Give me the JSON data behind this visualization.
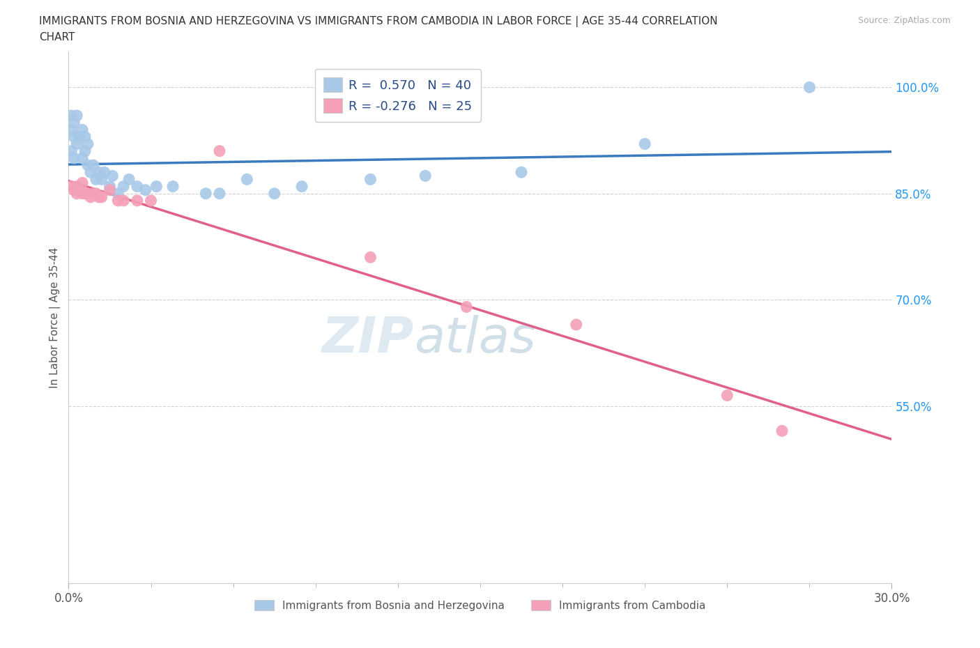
{
  "title_line1": "IMMIGRANTS FROM BOSNIA AND HERZEGOVINA VS IMMIGRANTS FROM CAMBODIA IN LABOR FORCE | AGE 35-44 CORRELATION",
  "title_line2": "CHART",
  "source": "Source: ZipAtlas.com",
  "ylabel": "In Labor Force | Age 35-44",
  "xlim": [
    0.0,
    0.3
  ],
  "ylim": [
    0.3,
    1.05
  ],
  "yticks": [
    0.55,
    0.7,
    0.85,
    1.0
  ],
  "ytick_labels": [
    "55.0%",
    "70.0%",
    "85.0%",
    "100.0%"
  ],
  "xticks": [
    0.0,
    0.3
  ],
  "xtick_labels": [
    "0.0%",
    "30.0%"
  ],
  "blue_R": 0.57,
  "blue_N": 40,
  "pink_R": -0.276,
  "pink_N": 25,
  "blue_color": "#a8c8e8",
  "blue_line_color": "#3a7abf",
  "pink_color": "#f4a0b8",
  "pink_line_color": "#e0608a",
  "legend_label_blue": "Immigrants from Bosnia and Herzegovina",
  "legend_label_pink": "Immigrants from Cambodia",
  "blue_x": [
    0.001,
    0.001,
    0.001,
    0.002,
    0.002,
    0.002,
    0.003,
    0.003,
    0.004,
    0.005,
    0.005,
    0.006,
    0.006,
    0.007,
    0.007,
    0.008,
    0.009,
    0.01,
    0.011,
    0.012,
    0.013,
    0.015,
    0.016,
    0.018,
    0.02,
    0.022,
    0.025,
    0.028,
    0.032,
    0.038,
    0.05,
    0.055,
    0.065,
    0.075,
    0.085,
    0.11,
    0.13,
    0.165,
    0.21,
    0.27
  ],
  "blue_y": [
    0.96,
    0.94,
    0.91,
    0.95,
    0.93,
    0.9,
    0.96,
    0.92,
    0.93,
    0.94,
    0.9,
    0.93,
    0.91,
    0.92,
    0.89,
    0.88,
    0.89,
    0.87,
    0.88,
    0.87,
    0.88,
    0.86,
    0.875,
    0.85,
    0.86,
    0.87,
    0.86,
    0.855,
    0.86,
    0.86,
    0.85,
    0.85,
    0.87,
    0.85,
    0.86,
    0.87,
    0.875,
    0.88,
    0.92,
    1.0
  ],
  "pink_x": [
    0.001,
    0.002,
    0.003,
    0.003,
    0.004,
    0.005,
    0.005,
    0.006,
    0.007,
    0.008,
    0.009,
    0.01,
    0.011,
    0.012,
    0.015,
    0.018,
    0.02,
    0.025,
    0.03,
    0.055,
    0.11,
    0.145,
    0.185,
    0.24,
    0.26
  ],
  "pink_y": [
    0.86,
    0.855,
    0.86,
    0.85,
    0.855,
    0.865,
    0.85,
    0.85,
    0.85,
    0.845,
    0.85,
    0.85,
    0.845,
    0.845,
    0.855,
    0.84,
    0.84,
    0.84,
    0.84,
    0.91,
    0.76,
    0.69,
    0.665,
    0.565,
    0.515
  ]
}
